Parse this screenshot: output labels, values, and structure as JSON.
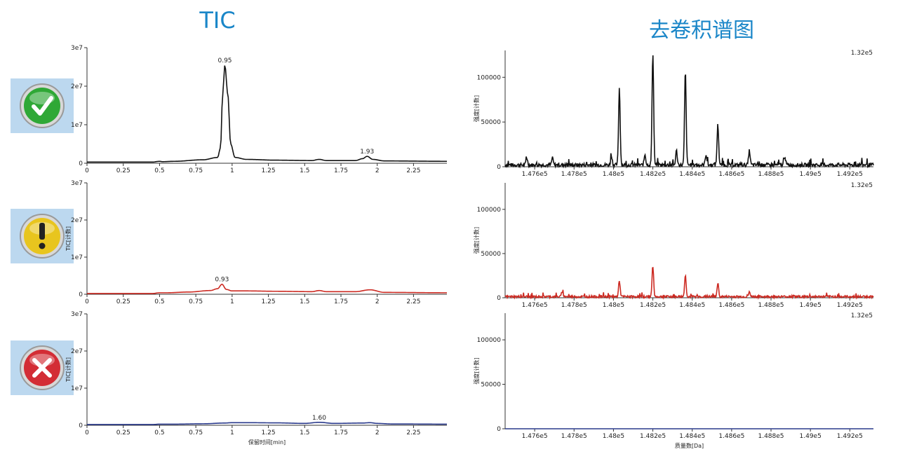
{
  "titles": {
    "tic": "TIC",
    "deconvolution": "去卷积谱图"
  },
  "status_icons": [
    {
      "name": "check-icon",
      "color": "#2fa836",
      "glyph": "✓"
    },
    {
      "name": "exclamation-icon",
      "color": "#e8c51e",
      "glyph": "!"
    },
    {
      "name": "close-icon",
      "color": "#d32d35",
      "glyph": "✕"
    }
  ],
  "chart_data": [
    {
      "type": "line",
      "name": "tic-top",
      "color": "#111111",
      "xlim": [
        0,
        2.48
      ],
      "ylim": [
        0,
        30000000
      ],
      "xticks": [
        "0",
        "0.25",
        "0.5",
        "0.75",
        "1",
        "1.25",
        "1.5",
        "1.75",
        "2",
        "2.25"
      ],
      "xtick_values": [
        0,
        0.25,
        0.5,
        0.75,
        1,
        1.25,
        1.5,
        1.75,
        2,
        2.25
      ],
      "yticks": [
        "0",
        "1e7",
        "2e7",
        "3e7"
      ],
      "ytick_values": [
        0,
        10000000,
        20000000,
        30000000
      ],
      "ylabel": "",
      "xlabel": "",
      "peaks": [
        {
          "x": 0.95,
          "y": 25500000,
          "label": "0.95"
        },
        {
          "x": 1.93,
          "y": 1800000,
          "label": "1.93"
        }
      ],
      "x": [
        0,
        0.45,
        0.5,
        0.52,
        0.6,
        0.8,
        0.9,
        0.92,
        0.935,
        0.95,
        0.97,
        0.99,
        1.02,
        1.1,
        1.3,
        1.55,
        1.6,
        1.65,
        1.85,
        1.9,
        1.93,
        1.97,
        2.05,
        2.48
      ],
      "y": [
        300000,
        300000,
        500000,
        400000,
        500000,
        900000,
        1500000,
        4000000,
        18000000,
        25500000,
        18000000,
        5000000,
        1500000,
        1000000,
        800000,
        700000,
        1000000,
        700000,
        700000,
        1200000,
        1800000,
        1000000,
        600000,
        500000
      ]
    },
    {
      "type": "line",
      "name": "tic-middle",
      "color": "#cc2a22",
      "xlim": [
        0,
        2.48
      ],
      "ylim": [
        0,
        30000000
      ],
      "xticks": [
        "0",
        "0.25",
        "0.5",
        "0.75",
        "1",
        "1.25",
        "1.5",
        "1.75",
        "2",
        "2.25"
      ],
      "xtick_values": [
        0,
        0.25,
        0.5,
        0.75,
        1,
        1.25,
        1.5,
        1.75,
        2,
        2.25
      ],
      "yticks": [
        "0",
        "1e7",
        "2e7",
        "3e7"
      ],
      "ytick_values": [
        0,
        10000000,
        20000000,
        30000000
      ],
      "ylabel": "TIC[计数]",
      "xlabel": "",
      "peaks": [
        {
          "x": 0.93,
          "y": 2700000,
          "label": "0.93"
        }
      ],
      "x": [
        0,
        0.45,
        0.5,
        0.55,
        0.7,
        0.85,
        0.9,
        0.93,
        0.96,
        1.0,
        1.1,
        1.3,
        1.55,
        1.6,
        1.65,
        1.85,
        1.95,
        2.05,
        2.48
      ],
      "y": [
        200000,
        200000,
        400000,
        400000,
        600000,
        1000000,
        1500000,
        2700000,
        1300000,
        900000,
        900000,
        800000,
        700000,
        1000000,
        700000,
        700000,
        1200000,
        500000,
        400000
      ]
    },
    {
      "type": "line",
      "name": "tic-bottom",
      "color": "#2a3a8c",
      "xlim": [
        0,
        2.48
      ],
      "ylim": [
        0,
        30000000
      ],
      "xticks": [
        "0",
        "0.25",
        "0.5",
        "0.75",
        "1",
        "1.25",
        "1.5",
        "1.75",
        "2",
        "2.25"
      ],
      "xtick_values": [
        0,
        0.25,
        0.5,
        0.75,
        1,
        1.25,
        1.5,
        1.75,
        2,
        2.25
      ],
      "yticks": [
        "0",
        "1e7",
        "2e7",
        "3e7"
      ],
      "ytick_values": [
        0,
        10000000,
        20000000,
        30000000
      ],
      "ylabel": "TIC[计数]",
      "xlabel": "保留时间[min]",
      "peaks": [
        {
          "x": 1.6,
          "y": 800000,
          "label": "1.60"
        }
      ],
      "x": [
        0,
        0.45,
        0.5,
        0.6,
        0.8,
        0.95,
        1.0,
        1.1,
        1.3,
        1.5,
        1.6,
        1.7,
        1.9,
        1.95,
        2.0,
        2.1,
        2.48
      ],
      "y": [
        200000,
        200000,
        300000,
        300000,
        400000,
        600000,
        700000,
        700000,
        650000,
        500000,
        800000,
        500000,
        600000,
        700000,
        500000,
        350000,
        300000
      ]
    },
    {
      "type": "line",
      "name": "deconv-top",
      "color": "#111111",
      "xlim": [
        147450,
        149320
      ],
      "ylim": [
        0,
        130000
      ],
      "xticks": [
        "1.476e5",
        "1.478e5",
        "1.48e5",
        "1.482e5",
        "1.484e5",
        "1.486e5",
        "1.488e5",
        "1.49e5",
        "1.492e5"
      ],
      "xtick_values": [
        147600,
        147800,
        148000,
        148200,
        148400,
        148600,
        148800,
        149000,
        149200
      ],
      "yticks": [
        "0",
        "50000",
        "100000"
      ],
      "ytick_values": [
        0,
        50000,
        100000
      ],
      "ylabel": "强度[计数]",
      "xlabel": "",
      "max_label": "1.32e5",
      "base_noise": 4000,
      "peaks": [
        {
          "x": 148030,
          "y": 86000
        },
        {
          "x": 148200,
          "y": 126000
        },
        {
          "x": 148365,
          "y": 105000
        },
        {
          "x": 148530,
          "y": 45000
        },
        {
          "x": 148160,
          "y": 12000
        },
        {
          "x": 148320,
          "y": 16000
        },
        {
          "x": 148690,
          "y": 16000
        },
        {
          "x": 148870,
          "y": 10000
        },
        {
          "x": 147990,
          "y": 10000
        },
        {
          "x": 148470,
          "y": 12000
        },
        {
          "x": 147560,
          "y": 8000
        },
        {
          "x": 147690,
          "y": 7000
        }
      ]
    },
    {
      "type": "line",
      "name": "deconv-middle",
      "color": "#cc2a22",
      "xlim": [
        147450,
        149320
      ],
      "ylim": [
        0,
        130000
      ],
      "xticks": [
        "1.476e5",
        "1.478e5",
        "1.48e5",
        "1.482e5",
        "1.484e5",
        "1.486e5",
        "1.488e5",
        "1.49e5",
        "1.492e5"
      ],
      "xtick_values": [
        147600,
        147800,
        148000,
        148200,
        148400,
        148600,
        148800,
        149000,
        149200
      ],
      "yticks": [
        "0",
        "50000",
        "100000"
      ],
      "ytick_values": [
        0,
        50000,
        100000
      ],
      "ylabel": "强度[计数]",
      "xlabel": "",
      "max_label": "1.32e5",
      "base_noise": 2500,
      "peaks": [
        {
          "x": 148030,
          "y": 18000
        },
        {
          "x": 148200,
          "y": 34000
        },
        {
          "x": 148365,
          "y": 24000
        },
        {
          "x": 148530,
          "y": 15000
        },
        {
          "x": 147740,
          "y": 6000
        },
        {
          "x": 148690,
          "y": 5000
        }
      ]
    },
    {
      "type": "line",
      "name": "deconv-bottom",
      "color": "#2a3a8c",
      "xlim": [
        147450,
        149320
      ],
      "ylim": [
        0,
        130000
      ],
      "xticks": [
        "1.476e5",
        "1.478e5",
        "1.48e5",
        "1.482e5",
        "1.484e5",
        "1.486e5",
        "1.488e5",
        "1.49e5",
        "1.492e5"
      ],
      "xtick_values": [
        147600,
        147800,
        148000,
        148200,
        148400,
        148600,
        148800,
        149000,
        149200
      ],
      "yticks": [
        "0",
        "50000",
        "100000"
      ],
      "ytick_values": [
        0,
        50000,
        100000
      ],
      "ylabel": "强度[计数]",
      "xlabel": "质量数[Da]",
      "max_label": "1.32e5",
      "base_noise": 0,
      "peaks": []
    }
  ]
}
